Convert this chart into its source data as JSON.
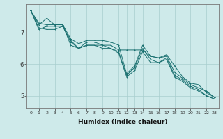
{
  "title": "",
  "xlabel": "Humidex (Indice chaleur)",
  "ylabel": "",
  "background_color": "#ceeaea",
  "grid_color": "#a8cece",
  "line_color": "#1a7070",
  "x_ticks": [
    0,
    1,
    2,
    3,
    4,
    5,
    6,
    7,
    8,
    9,
    10,
    11,
    12,
    13,
    14,
    15,
    16,
    17,
    18,
    19,
    20,
    21,
    22,
    23
  ],
  "y_ticks": [
    5,
    6,
    7
  ],
  "ylim": [
    4.6,
    7.9
  ],
  "xlim": [
    -0.5,
    23.5
  ],
  "line1": [
    7.7,
    7.3,
    7.25,
    7.25,
    7.25,
    6.8,
    6.65,
    6.75,
    6.75,
    6.75,
    6.7,
    6.6,
    5.7,
    5.95,
    6.6,
    6.25,
    6.2,
    6.3,
    5.95,
    5.6,
    5.4,
    5.35,
    5.1,
    4.95
  ],
  "line2": [
    7.7,
    7.25,
    7.45,
    7.25,
    7.25,
    6.6,
    6.5,
    6.7,
    6.7,
    6.6,
    6.6,
    6.45,
    6.45,
    6.45,
    6.45,
    6.25,
    6.2,
    6.25,
    5.75,
    5.55,
    5.35,
    5.25,
    5.15,
    4.95
  ],
  "line3": [
    7.7,
    7.15,
    7.1,
    7.1,
    7.2,
    6.75,
    6.5,
    6.6,
    6.6,
    6.5,
    6.5,
    6.4,
    5.65,
    5.9,
    6.5,
    6.15,
    6.05,
    6.2,
    5.65,
    5.5,
    5.3,
    5.2,
    5.0,
    4.9
  ],
  "line4": [
    7.7,
    7.1,
    7.2,
    7.2,
    7.2,
    6.7,
    6.5,
    6.6,
    6.6,
    6.6,
    6.5,
    6.35,
    5.6,
    5.8,
    6.4,
    6.05,
    6.05,
    6.15,
    5.6,
    5.45,
    5.25,
    5.15,
    5.0,
    4.9
  ]
}
